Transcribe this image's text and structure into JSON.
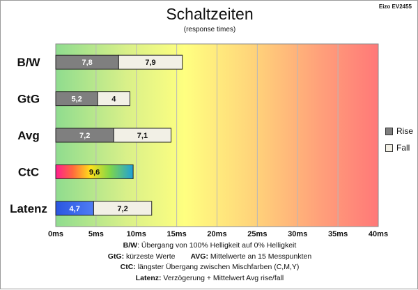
{
  "header": {
    "title": "Schaltzeiten",
    "subtitle": "(response times)",
    "device": "Eizo EV2455"
  },
  "legend": [
    {
      "label": "Rise",
      "color": "#7f7f7f"
    },
    {
      "label": "Fall",
      "color": "#f2f0e6"
    }
  ],
  "notes": {
    "bw_key": "B/W",
    "bw_text": ":  Übergang von 100% Helligkeit auf 0% Helligkeit",
    "gtg_key": "GtG:",
    "gtg_text": " kürzeste  Werte",
    "avg_key": "AVG:",
    "avg_text": " Mittelwerte  an 15 Messpunkten",
    "ctc_key": "CtC:",
    "ctc_text": " längster Übergang  zwischen Mischfarben (C,M,Y)",
    "lat_key": "Latenz:",
    "lat_text": " Verzögerung  + Mittelwert Avg rise/fall"
  },
  "chart_data": {
    "type": "bar",
    "orientation": "horizontal",
    "stacked": true,
    "title": "Schaltzeiten",
    "subtitle": "(response times)",
    "categories": [
      "B/W",
      "GtG",
      "Avg",
      "CtC",
      "Latenz"
    ],
    "series": [
      {
        "name": "Rise",
        "values": [
          7.8,
          5.2,
          7.2,
          9.6,
          4.7
        ],
        "labels": [
          "7,8",
          "5,2",
          "7,2",
          "9,6",
          "4,7"
        ]
      },
      {
        "name": "Fall",
        "values": [
          7.9,
          4.0,
          7.1,
          null,
          7.2
        ],
        "labels": [
          "7,9",
          "4",
          "7,1",
          "",
          "7,2"
        ]
      }
    ],
    "special_bar_styles": {
      "CtC": "rainbow",
      "Latenz": "blue"
    },
    "xlim": [
      0,
      40
    ],
    "xticks": [
      "0ms",
      "5ms",
      "10ms",
      "15ms",
      "20ms",
      "25ms",
      "30ms",
      "35ms",
      "40ms"
    ],
    "xtick_values": [
      0,
      5,
      10,
      15,
      20,
      25,
      30,
      35,
      40
    ],
    "background": "gradient green-yellow-red",
    "grid": true,
    "legend_position": "right"
  }
}
